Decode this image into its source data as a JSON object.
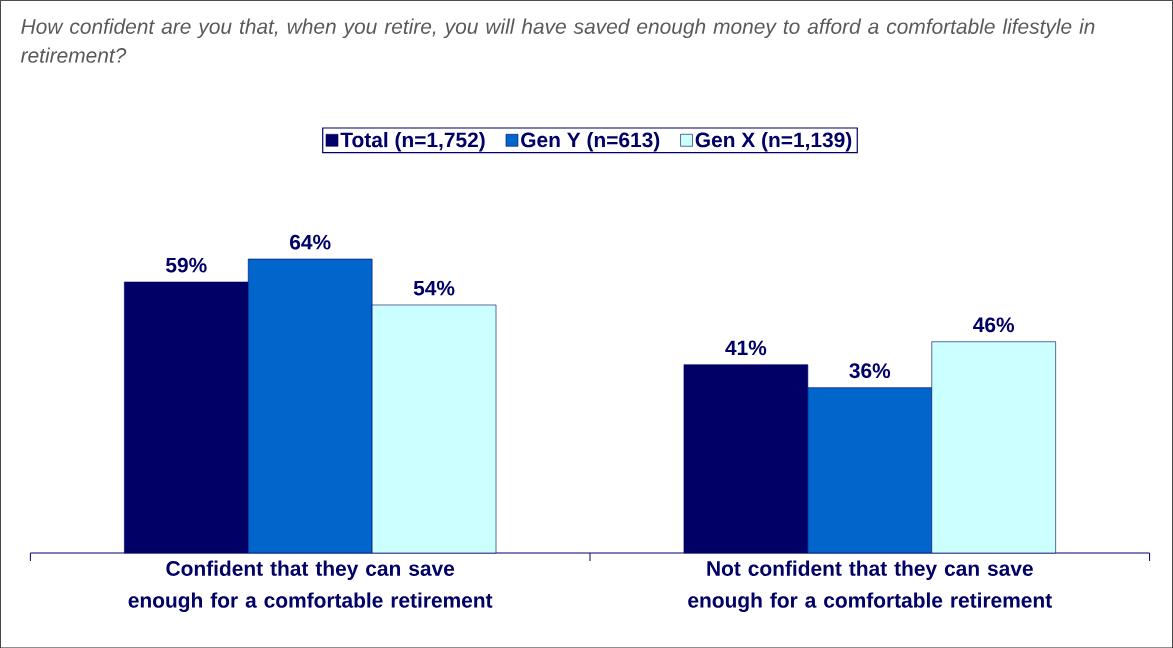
{
  "chart_data": {
    "type": "bar",
    "title": "*How confident are you that, when you retire, you will have saved enough money to afford a comfortable lifestyle in retirement?*",
    "categories": [
      "Confident that they can save enough for a comfortable retirement",
      "Not confident that they can save enough for a comfortable retirement"
    ],
    "series": [
      {
        "name": "Total (n=1,752)",
        "color": "#000066",
        "values": [
          59,
          41
        ],
        "value_labels": [
          "59%",
          "41%"
        ]
      },
      {
        "name": "Gen Y (n=613)",
        "color": "#0066cc",
        "values": [
          64,
          36
        ],
        "value_labels": [
          "64%",
          "36%"
        ]
      },
      {
        "name": "Gen X (n=1,139)",
        "color": "#ccffff",
        "values": [
          54,
          46
        ],
        "value_labels": [
          "54%",
          "46%"
        ]
      }
    ],
    "legend": "top"
  }
}
